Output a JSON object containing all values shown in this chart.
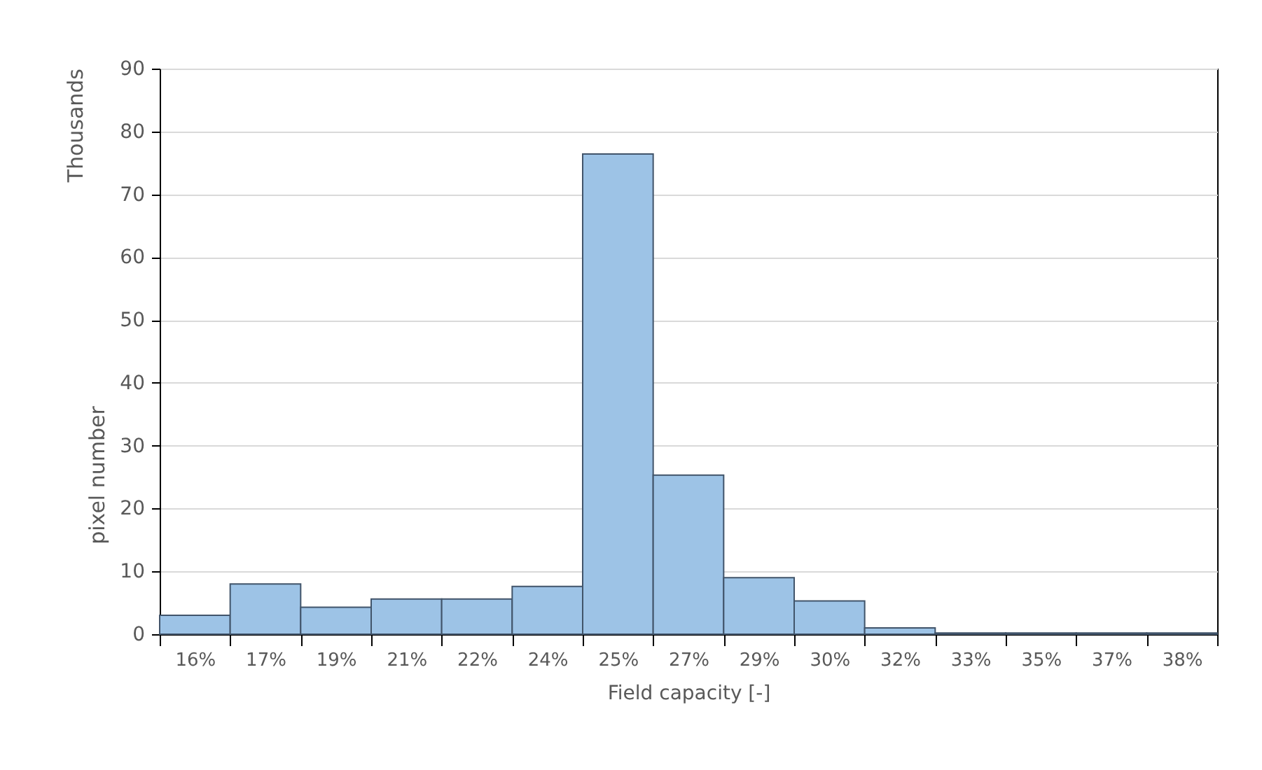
{
  "chart_data": {
    "type": "bar",
    "xlabel": "Field capacity [-]",
    "ylabel": "pixel number",
    "annotations": [
      "Thousands"
    ],
    "categories": [
      "16%",
      "17%",
      "19%",
      "21%",
      "22%",
      "24%",
      "25%",
      "27%",
      "29%",
      "30%",
      "32%",
      "33%",
      "35%",
      "37%",
      "38%"
    ],
    "values": [
      3.0,
      8.0,
      4.3,
      5.6,
      5.6,
      7.6,
      76.4,
      25.3,
      9.0,
      5.3,
      1.0,
      0.2,
      0.2,
      0.2,
      0.2
    ],
    "color": "#9dc3e6",
    "ylim": [
      0,
      90
    ],
    "yticks": [
      0,
      10,
      20,
      30,
      40,
      50,
      60,
      70,
      80,
      90
    ],
    "grid": "y"
  }
}
